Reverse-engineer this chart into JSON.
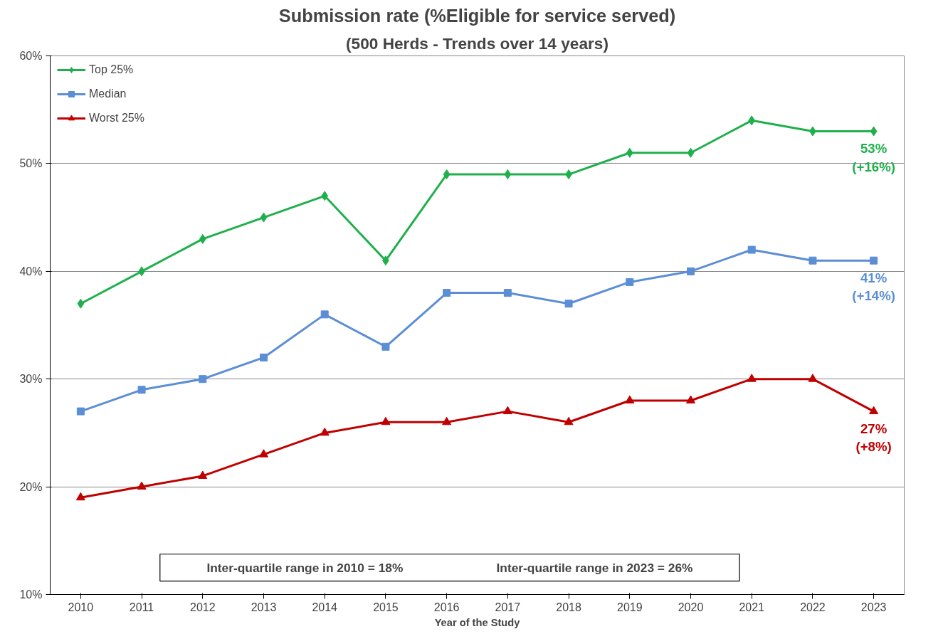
{
  "chart_data": {
    "type": "line",
    "title": "Submission rate (%Eligible for service served)",
    "subtitle": "(500 Herds - Trends over 14 years)",
    "xlabel": "Year of the Study",
    "categories": [
      "2010",
      "2011",
      "2012",
      "2013",
      "2014",
      "2015",
      "2016",
      "2017",
      "2018",
      "2019",
      "2020",
      "2021",
      "2022",
      "2023"
    ],
    "series": [
      {
        "name": "Top 25%",
        "color": "#1fb04c",
        "marker": "diamond",
        "values": [
          37,
          40,
          43,
          45,
          47,
          41,
          49,
          49,
          49,
          51,
          51,
          54,
          53,
          53
        ]
      },
      {
        "name": "Median",
        "color": "#5b8ed6",
        "marker": "square",
        "values": [
          27,
          29,
          30,
          32,
          36,
          33,
          38,
          38,
          37,
          39,
          40,
          42,
          41,
          41
        ]
      },
      {
        "name": "Worst 25%",
        "color": "#c00000",
        "marker": "triangle",
        "values": [
          19,
          20,
          21,
          23,
          25,
          26,
          26,
          27,
          26,
          28,
          28,
          30,
          30,
          27
        ]
      }
    ],
    "ylim": [
      10,
      60
    ],
    "yticks": [
      {
        "value": 10,
        "label": "10%"
      },
      {
        "value": 20,
        "label": "20%"
      },
      {
        "value": 30,
        "label": "30%"
      },
      {
        "value": 40,
        "label": "40%"
      },
      {
        "value": 50,
        "label": "50%"
      },
      {
        "value": 60,
        "label": "60%"
      }
    ],
    "grid": "y",
    "legend": "top left",
    "line_style": "solid",
    "annotations": [
      {
        "text": "53%\n(+16%)",
        "x": "2023",
        "y": 53
      },
      {
        "text": "41%\n(+14%)",
        "x": "2023",
        "y": 41
      },
      {
        "text": "27%\n(+8%)",
        "x": "2023",
        "y": 27
      },
      "Inter-quartile range in 2010 = 18%",
      "Inter-quartile range in 2023 = 26%"
    ]
  }
}
